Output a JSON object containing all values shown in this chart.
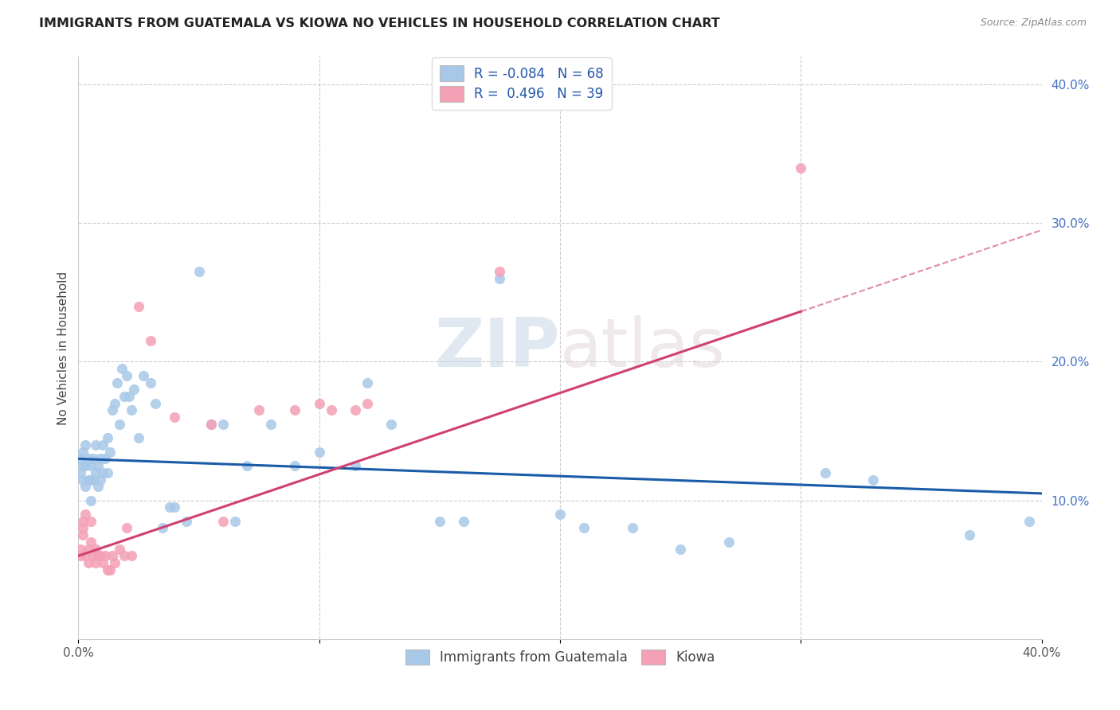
{
  "title": "IMMIGRANTS FROM GUATEMALA VS KIOWA NO VEHICLES IN HOUSEHOLD CORRELATION CHART",
  "source": "Source: ZipAtlas.com",
  "ylabel": "No Vehicles in Household",
  "xlim": [
    0.0,
    0.4
  ],
  "ylim": [
    0.0,
    0.42
  ],
  "y_ticks_right": [
    0.1,
    0.2,
    0.3,
    0.4
  ],
  "y_tick_labels_right": [
    "10.0%",
    "20.0%",
    "30.0%",
    "40.0%"
  ],
  "color_blue": "#a8c8e8",
  "color_pink": "#f4a0b5",
  "color_blue_line": "#1a5ca8",
  "color_pink_line": "#d04070",
  "color_pink_dash": "#d04070",
  "watermark": "ZIPatlas",
  "blue_line_x0": 0.0,
  "blue_line_y0": 0.13,
  "blue_line_x1": 0.4,
  "blue_line_y1": 0.105,
  "pink_line_x0": 0.0,
  "pink_line_y0": 0.06,
  "pink_line_x1": 0.4,
  "pink_line_y1": 0.295,
  "blue_points_x": [
    0.001,
    0.001,
    0.002,
    0.002,
    0.002,
    0.003,
    0.003,
    0.003,
    0.004,
    0.004,
    0.005,
    0.005,
    0.005,
    0.006,
    0.006,
    0.007,
    0.007,
    0.008,
    0.008,
    0.009,
    0.009,
    0.01,
    0.01,
    0.011,
    0.012,
    0.012,
    0.013,
    0.014,
    0.015,
    0.016,
    0.017,
    0.018,
    0.019,
    0.02,
    0.021,
    0.022,
    0.023,
    0.025,
    0.027,
    0.03,
    0.032,
    0.035,
    0.038,
    0.04,
    0.045,
    0.05,
    0.055,
    0.06,
    0.065,
    0.07,
    0.08,
    0.09,
    0.1,
    0.115,
    0.12,
    0.13,
    0.15,
    0.16,
    0.175,
    0.2,
    0.21,
    0.23,
    0.25,
    0.27,
    0.31,
    0.33,
    0.37,
    0.395
  ],
  "blue_points_y": [
    0.12,
    0.13,
    0.125,
    0.135,
    0.115,
    0.14,
    0.125,
    0.11,
    0.13,
    0.115,
    0.125,
    0.115,
    0.1,
    0.13,
    0.115,
    0.14,
    0.12,
    0.125,
    0.11,
    0.13,
    0.115,
    0.14,
    0.12,
    0.13,
    0.145,
    0.12,
    0.135,
    0.165,
    0.17,
    0.185,
    0.155,
    0.195,
    0.175,
    0.19,
    0.175,
    0.165,
    0.18,
    0.145,
    0.19,
    0.185,
    0.17,
    0.08,
    0.095,
    0.095,
    0.085,
    0.265,
    0.155,
    0.155,
    0.085,
    0.125,
    0.155,
    0.125,
    0.135,
    0.125,
    0.185,
    0.155,
    0.085,
    0.085,
    0.26,
    0.09,
    0.08,
    0.08,
    0.065,
    0.07,
    0.12,
    0.115,
    0.075,
    0.085
  ],
  "pink_points_x": [
    0.001,
    0.001,
    0.002,
    0.002,
    0.002,
    0.003,
    0.003,
    0.004,
    0.004,
    0.005,
    0.005,
    0.006,
    0.007,
    0.007,
    0.008,
    0.009,
    0.01,
    0.011,
    0.012,
    0.013,
    0.014,
    0.015,
    0.017,
    0.019,
    0.02,
    0.022,
    0.025,
    0.03,
    0.04,
    0.055,
    0.06,
    0.075,
    0.09,
    0.1,
    0.105,
    0.115,
    0.12,
    0.175,
    0.3
  ],
  "pink_points_y": [
    0.065,
    0.06,
    0.085,
    0.08,
    0.075,
    0.09,
    0.06,
    0.065,
    0.055,
    0.085,
    0.07,
    0.06,
    0.065,
    0.055,
    0.06,
    0.06,
    0.055,
    0.06,
    0.05,
    0.05,
    0.06,
    0.055,
    0.065,
    0.06,
    0.08,
    0.06,
    0.24,
    0.215,
    0.16,
    0.155,
    0.085,
    0.165,
    0.165,
    0.17,
    0.165,
    0.165,
    0.17,
    0.265,
    0.34
  ],
  "background_color": "#ffffff",
  "grid_color": "#cccccc"
}
